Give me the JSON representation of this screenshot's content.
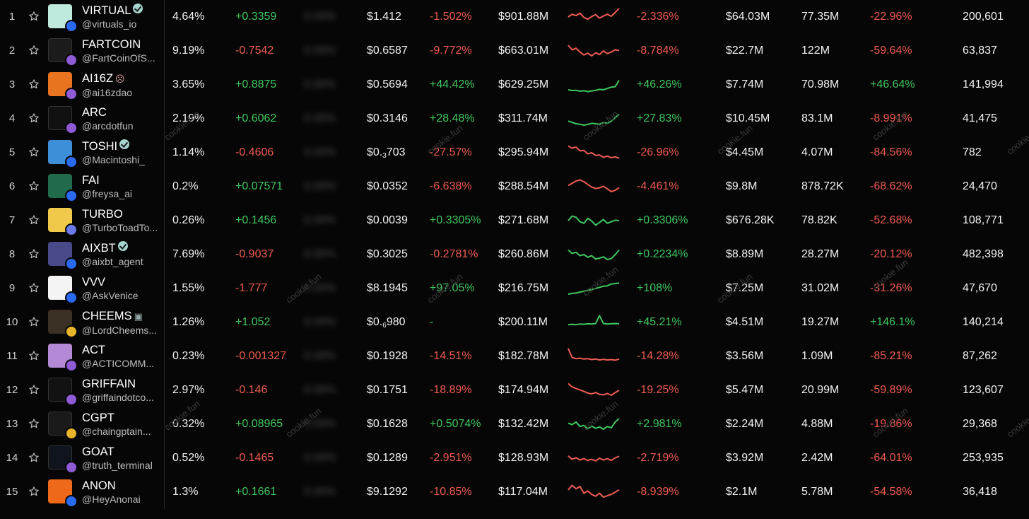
{
  "colors": {
    "positive": "#3fc860",
    "negative": "#ef5b52",
    "background": "#060606"
  },
  "watermark": "cookie.fun",
  "rows": [
    {
      "rank": "1",
      "name": "VIRTUAL",
      "badge": "verified",
      "handle": "@virtuals_io",
      "chain": "base",
      "avatar_color": "#bfe9dc",
      "avatar_icon": "virtual-logo-icon",
      "mindshare": "4.64%",
      "mindshare_change": "+0.3359",
      "hidden": "0.00%",
      "price": "$1.412",
      "price_change": "-1.502%",
      "market_cap": "$901.88M",
      "spark": [
        50,
        38,
        44,
        33,
        52,
        60,
        48,
        40,
        55,
        46,
        38,
        47,
        30,
        12
      ],
      "mcap_change": "-2.336%",
      "liquidity": "$64.03M",
      "volume": "77.35M",
      "volume_change": "-22.96%",
      "holders": "200,601"
    },
    {
      "rank": "2",
      "name": "FARTCOIN",
      "badge": "",
      "handle": "@FartCoinOfS...",
      "chain": "solana",
      "avatar_color": "#1b1b1b",
      "avatar_icon": "fartcoin-logo-icon",
      "mindshare": "9.19%",
      "mindshare_change": "-0.7542",
      "hidden": "0.00%",
      "price": "$0.6587",
      "price_change": "-9.772%",
      "market_cap": "$663.01M",
      "spark": [
        25,
        45,
        38,
        55,
        68,
        60,
        72,
        58,
        66,
        50,
        62,
        55,
        45,
        48
      ],
      "mcap_change": "-8.784%",
      "liquidity": "$22.7M",
      "volume": "122M",
      "volume_change": "-59.64%",
      "holders": "63,837"
    },
    {
      "rank": "3",
      "name": "AI16Z",
      "badge": "emoji",
      "handle": "@ai16zdao",
      "chain": "solana",
      "avatar_color": "#e8741f",
      "avatar_icon": "ai16z-logo-icon",
      "mindshare": "3.65%",
      "mindshare_change": "+0.8875",
      "hidden": "0.00%",
      "price": "$0.5694",
      "price_change": "+44.42%",
      "market_cap": "$629.25M",
      "spark": [
        72,
        75,
        74,
        78,
        76,
        80,
        77,
        74,
        70,
        72,
        66,
        60,
        58,
        30
      ],
      "mcap_change": "+46.26%",
      "liquidity": "$7.74M",
      "volume": "70.98M",
      "volume_change": "+46.64%",
      "holders": "141,994"
    },
    {
      "rank": "4",
      "name": "ARC",
      "badge": "",
      "handle": "@arcdotfun",
      "chain": "solana",
      "avatar_color": "#111111",
      "avatar_icon": "arc-logo-icon",
      "mindshare": "2.19%",
      "mindshare_change": "+0.6062",
      "hidden": "0.00%",
      "price": "$0.3146",
      "price_change": "+28.48%",
      "market_cap": "$311.74M",
      "spark": [
        60,
        66,
        72,
        74,
        78,
        75,
        70,
        72,
        74,
        66,
        70,
        60,
        45,
        30
      ],
      "mcap_change": "+27.83%",
      "liquidity": "$10.45M",
      "volume": "83.1M",
      "volume_change": "-8.991%",
      "holders": "41,475"
    },
    {
      "rank": "5",
      "name": "TOSHI",
      "badge": "verified",
      "handle": "@Macintoshi_",
      "chain": "base",
      "avatar_color": "#3d8fd8",
      "avatar_icon": "toshi-logo-icon",
      "mindshare": "1.14%",
      "mindshare_change": "-0.4606",
      "hidden": "0.00%",
      "price_main": "$0.",
      "price_sub": "3",
      "price_tail": "703",
      "price_change": "-27.57%",
      "market_cap": "$295.94M",
      "spark": [
        20,
        30,
        25,
        42,
        40,
        55,
        50,
        62,
        60,
        70,
        65,
        72,
        68,
        74
      ],
      "mcap_change": "-26.96%",
      "liquidity": "$4.45M",
      "volume": "4.07M",
      "volume_change": "-84.56%",
      "holders": "782"
    },
    {
      "rank": "6",
      "name": "FAI",
      "badge": "",
      "handle": "@freysa_ai",
      "chain": "base",
      "avatar_color": "#1f6b4b",
      "avatar_icon": "fai-logo-icon",
      "mindshare": "0.2%",
      "mindshare_change": "+0.07571",
      "hidden": "0.00%",
      "price": "$0.0352",
      "price_change": "-6.638%",
      "market_cap": "$288.54M",
      "spark": [
        45,
        35,
        25,
        20,
        28,
        40,
        52,
        58,
        55,
        48,
        60,
        72,
        66,
        55
      ],
      "mcap_change": "-4.461%",
      "liquidity": "$9.8M",
      "volume": "878.72K",
      "volume_change": "-68.62%",
      "holders": "24,470"
    },
    {
      "rank": "7",
      "name": "TURBO",
      "badge": "",
      "handle": "@TurboToadTo...",
      "chain": "ethereum",
      "avatar_color": "#f0c84a",
      "avatar_icon": "turbo-logo-icon",
      "mindshare": "0.26%",
      "mindshare_change": "+0.1456",
      "hidden": "0.00%",
      "price": "$0.0039",
      "price_change": "+0.3305%",
      "market_cap": "$271.68M",
      "spark": [
        50,
        30,
        35,
        55,
        62,
        40,
        52,
        70,
        58,
        45,
        62,
        55,
        48,
        50
      ],
      "mcap_change": "+0.3306%",
      "liquidity": "$676.28K",
      "volume": "78.82K",
      "volume_change": "-52.68%",
      "holders": "108,771"
    },
    {
      "rank": "8",
      "name": "AIXBT",
      "badge": "verified",
      "handle": "@aixbt_agent",
      "chain": "base",
      "avatar_color": "#4a4a8a",
      "avatar_icon": "aixbt-logo-icon",
      "mindshare": "7.69%",
      "mindshare_change": "-0.9037",
      "hidden": "0.00%",
      "price": "$0.3025",
      "price_change": "-0.2781%",
      "market_cap": "$260.86M",
      "spark": [
        30,
        45,
        40,
        55,
        50,
        62,
        55,
        70,
        66,
        60,
        72,
        68,
        50,
        30
      ],
      "mcap_change": "+0.2234%",
      "liquidity": "$8.89M",
      "volume": "28.27M",
      "volume_change": "-20.12%",
      "holders": "482,398"
    },
    {
      "rank": "9",
      "name": "VVV",
      "badge": "",
      "handle": "@AskVenice",
      "chain": "base",
      "avatar_color": "#f4f4f4",
      "avatar_icon": "vvv-logo-icon",
      "mindshare": "1.55%",
      "mindshare_change": "-1.777",
      "hidden": "0.00%",
      "price": "$8.1945",
      "price_change": "+97.05%",
      "market_cap": "$216.75M",
      "spark": [
        75,
        72,
        70,
        66,
        62,
        58,
        55,
        50,
        45,
        40,
        38,
        30,
        28,
        26
      ],
      "mcap_change": "+108%",
      "liquidity": "$7.25M",
      "volume": "31.02M",
      "volume_change": "-31.26%",
      "holders": "47,670"
    },
    {
      "rank": "10",
      "name": "CHEEMS",
      "badge": "robot",
      "handle": "@LordCheems...",
      "chain": "bsc",
      "avatar_color": "#3a3024",
      "avatar_icon": "cheems-logo-icon",
      "mindshare": "1.26%",
      "mindshare_change": "+1.052",
      "hidden": "0.00%",
      "price_main": "$0.",
      "price_sub": "6",
      "price_tail": "980",
      "price_change": "-",
      "market_cap": "$200.11M",
      "spark": [
        60,
        58,
        60,
        57,
        58,
        56,
        57,
        55,
        20,
        55,
        57,
        56,
        55,
        56
      ],
      "mcap_change": "+45.21%",
      "liquidity": "$4.51M",
      "volume": "19.27M",
      "volume_change": "+146.1%",
      "holders": "140,214"
    },
    {
      "rank": "11",
      "name": "ACT",
      "badge": "",
      "handle": "@ACTICOMM...",
      "chain": "solana",
      "avatar_color": "#b48ad6",
      "avatar_icon": "act-logo-icon",
      "mindshare": "0.23%",
      "mindshare_change": "-0.001327",
      "hidden": "0.00%",
      "price": "$0.1928",
      "price_change": "-14.51%",
      "market_cap": "$182.78M",
      "spark": [
        15,
        55,
        60,
        58,
        62,
        60,
        64,
        62,
        66,
        63,
        66,
        64,
        67,
        62
      ],
      "mcap_change": "-14.28%",
      "liquidity": "$3.56M",
      "volume": "1.09M",
      "volume_change": "-85.21%",
      "holders": "87,262"
    },
    {
      "rank": "12",
      "name": "GRIFFAIN",
      "badge": "",
      "handle": "@griffaindotco...",
      "chain": "solana",
      "avatar_color": "#121212",
      "avatar_icon": "griffain-logo-icon",
      "mindshare": "2.97%",
      "mindshare_change": "-0.146",
      "hidden": "0.00%",
      "price": "$0.1751",
      "price_change": "-18.89%",
      "market_cap": "$174.94M",
      "spark": [
        20,
        35,
        42,
        48,
        55,
        62,
        66,
        60,
        68,
        70,
        64,
        72,
        60,
        50
      ],
      "mcap_change": "-19.25%",
      "liquidity": "$5.47M",
      "volume": "20.99M",
      "volume_change": "-59.89%",
      "holders": "123,607"
    },
    {
      "rank": "13",
      "name": "CGPT",
      "badge": "",
      "handle": "@chaingptain...",
      "chain": "bsc",
      "avatar_color": "#1a1a1a",
      "avatar_icon": "cgpt-logo-icon",
      "mindshare": "0.32%",
      "mindshare_change": "+0.08965",
      "hidden": "0.00%",
      "price": "$0.1628",
      "price_change": "+0.5074%",
      "market_cap": "$132.42M",
      "spark": [
        45,
        52,
        40,
        60,
        55,
        70,
        58,
        68,
        62,
        72,
        60,
        66,
        40,
        25
      ],
      "mcap_change": "+2.981%",
      "liquidity": "$2.24M",
      "volume": "4.88M",
      "volume_change": "-19.86%",
      "holders": "29,368"
    },
    {
      "rank": "14",
      "name": "GOAT",
      "badge": "",
      "handle": "@truth_terminal",
      "chain": "solana",
      "avatar_color": "#10141c",
      "avatar_icon": "goat-logo-icon",
      "mindshare": "0.52%",
      "mindshare_change": "-0.1465",
      "hidden": "0.00%",
      "price": "$0.1289",
      "price_change": "-2.951%",
      "market_cap": "$128.93M",
      "spark": [
        40,
        55,
        48,
        58,
        52,
        60,
        55,
        62,
        50,
        58,
        52,
        60,
        48,
        42
      ],
      "mcap_change": "-2.719%",
      "liquidity": "$3.92M",
      "volume": "2.42M",
      "volume_change": "-64.01%",
      "holders": "253,935"
    },
    {
      "rank": "15",
      "name": "ANON",
      "badge": "",
      "handle": "@HeyAnonai",
      "chain": "base",
      "avatar_color": "#ee6a1a",
      "avatar_icon": "anon-logo-icon",
      "mindshare": "1.3%",
      "mindshare_change": "+0.1661",
      "hidden": "0.00%",
      "price": "$9.1292",
      "price_change": "-10.85%",
      "market_cap": "$117.04M",
      "spark": [
        40,
        20,
        35,
        25,
        55,
        45,
        60,
        68,
        55,
        72,
        66,
        60,
        50,
        40
      ],
      "mcap_change": "-8.939%",
      "liquidity": "$2.1M",
      "volume": "5.78M",
      "volume_change": "-54.58%",
      "holders": "36,418"
    }
  ]
}
